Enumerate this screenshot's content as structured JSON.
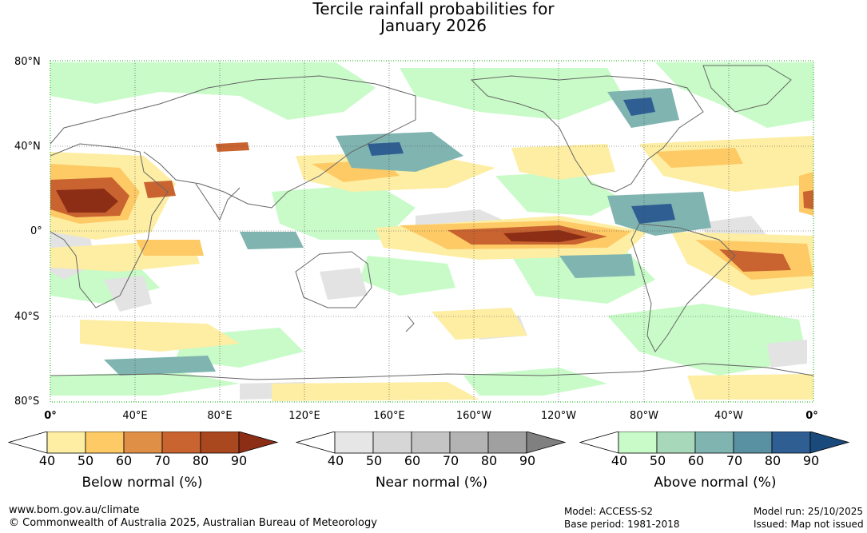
{
  "title": {
    "line1": "Tercile rainfall probabilities for",
    "line2": "January 2026"
  },
  "map": {
    "lat_labels": [
      "80°N",
      "40°N",
      "0°",
      "40°S",
      "80°S"
    ],
    "lon_labels": [
      "0°",
      "40°E",
      "80°E",
      "120°E",
      "160°E",
      "160°W",
      "120°W",
      "80°W",
      "40°W",
      "0°"
    ]
  },
  "colorbars": [
    {
      "title": "Below normal (%)",
      "ticks": [
        "40",
        "50",
        "60",
        "70",
        "80",
        "90"
      ],
      "colors": [
        "#ffffff",
        "#fdeea3",
        "#fdca66",
        "#df8f46",
        "#c9632f",
        "#a9471f",
        "#8c2d16"
      ]
    },
    {
      "title": "Near normal (%)",
      "ticks": [
        "40",
        "50",
        "60",
        "70",
        "80",
        "90"
      ],
      "colors": [
        "#ffffff",
        "#e6e6e6",
        "#d6d6d6",
        "#c4c4c4",
        "#b3b3b3",
        "#a0a0a0",
        "#808080"
      ]
    },
    {
      "title": "Above normal (%)",
      "ticks": [
        "40",
        "50",
        "60",
        "70",
        "80",
        "90"
      ],
      "colors": [
        "#ffffff",
        "#c8fbc8",
        "#a6d8b9",
        "#7fb4b0",
        "#5a91a2",
        "#2f5e93",
        "#1a4a7c"
      ]
    }
  ],
  "footer": {
    "url": "www.bom.gov.au/climate",
    "copyright": "© Commonwealth of Australia 2025, Australian Bureau of Meteorology",
    "model": "Model: ACCESS-S2",
    "base_period": "Base period: 1981-2018",
    "model_run": "Model run: 25/10/2025",
    "issued": "Issued: Map not issued"
  }
}
